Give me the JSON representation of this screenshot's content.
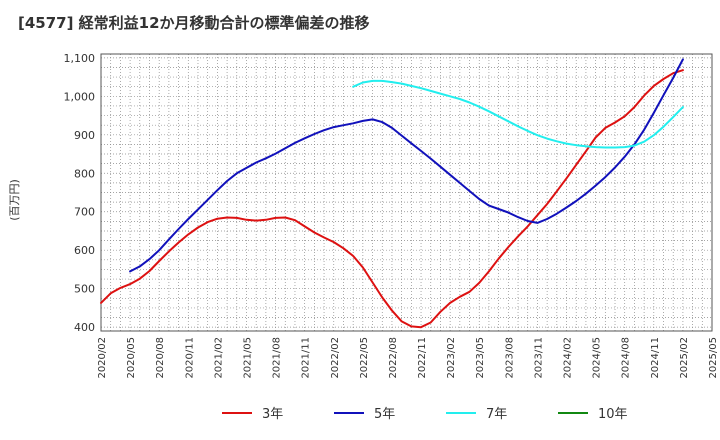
{
  "chart_data": {
    "type": "line",
    "title": "[4577]  経常利益12か月移動合計の標準偏差の推移",
    "ylabel": "(百万円)",
    "xlabel": "",
    "ylim": [
      390,
      1110
    ],
    "y_ticks": [
      "400",
      "500",
      "600",
      "700",
      "800",
      "900",
      "1,000",
      "1,100"
    ],
    "y_tick_values": [
      400,
      500,
      600,
      700,
      800,
      900,
      1000,
      1100
    ],
    "x_tick_labels": [
      "2020/02",
      "2020/05",
      "2020/08",
      "2020/11",
      "2021/02",
      "2021/05",
      "2021/08",
      "2021/11",
      "2022/02",
      "2022/05",
      "2022/08",
      "2022/11",
      "2023/02",
      "2023/05",
      "2023/08",
      "2023/11",
      "2024/02",
      "2024/05",
      "2024/08",
      "2024/11",
      "2025/02",
      "2025/05"
    ],
    "x_start": "2020/02",
    "x_end": "2025/05",
    "grid": true,
    "legend_position": "bottom",
    "series": [
      {
        "name": "3年",
        "color": "#dd1111",
        "x": [
          "2020/02",
          "2020/03",
          "2020/04",
          "2020/05",
          "2020/06",
          "2020/07",
          "2020/08",
          "2020/09",
          "2020/10",
          "2020/11",
          "2020/12",
          "2021/01",
          "2021/02",
          "2021/03",
          "2021/04",
          "2021/05",
          "2021/06",
          "2021/07",
          "2021/08",
          "2021/09",
          "2021/10",
          "2021/11",
          "2021/12",
          "2022/01",
          "2022/02",
          "2022/03",
          "2022/04",
          "2022/05",
          "2022/06",
          "2022/07",
          "2022/08",
          "2022/09",
          "2022/10",
          "2022/11",
          "2022/12",
          "2023/01",
          "2023/02",
          "2023/03",
          "2023/04",
          "2023/05",
          "2023/06",
          "2023/07",
          "2023/08",
          "2023/09",
          "2023/10",
          "2023/11",
          "2023/12",
          "2024/01",
          "2024/02",
          "2024/03",
          "2024/04",
          "2024/05",
          "2024/06",
          "2024/07",
          "2024/08",
          "2024/09",
          "2024/10",
          "2024/11",
          "2024/12",
          "2025/01",
          "2025/02"
        ],
        "values": [
          463,
          488,
          502,
          512,
          526,
          546,
          572,
          597,
          620,
          641,
          659,
          673,
          682,
          685,
          684,
          679,
          677,
          679,
          684,
          685,
          678,
          662,
          646,
          633,
          621,
          605,
          585,
          555,
          516,
          477,
          443,
          415,
          402,
          400,
          412,
          440,
          463,
          479,
          492,
          515,
          545,
          578,
          608,
          636,
          662,
          691,
          720,
          753,
          787,
          822,
          857,
          893,
          918,
          932,
          948,
          972,
          1002,
          1027,
          1045,
          1060,
          1068
        ]
      },
      {
        "name": "5年",
        "color": "#1111bb",
        "x": [
          "2020/05",
          "2020/06",
          "2020/07",
          "2020/08",
          "2020/09",
          "2020/10",
          "2020/11",
          "2020/12",
          "2021/01",
          "2021/02",
          "2021/03",
          "2021/04",
          "2021/05",
          "2021/06",
          "2021/07",
          "2021/08",
          "2021/09",
          "2021/10",
          "2021/11",
          "2021/12",
          "2022/01",
          "2022/02",
          "2022/03",
          "2022/04",
          "2022/05",
          "2022/06",
          "2022/07",
          "2022/08",
          "2022/09",
          "2022/10",
          "2022/11",
          "2022/12",
          "2023/01",
          "2023/02",
          "2023/03",
          "2023/04",
          "2023/05",
          "2023/06",
          "2023/07",
          "2023/08",
          "2023/09",
          "2023/10",
          "2023/11",
          "2023/12",
          "2024/01",
          "2024/02",
          "2024/03",
          "2024/04",
          "2024/05",
          "2024/06",
          "2024/07",
          "2024/08",
          "2024/09",
          "2024/10",
          "2024/11",
          "2024/12",
          "2025/01",
          "2025/02"
        ],
        "values": [
          545,
          558,
          577,
          600,
          628,
          655,
          681,
          706,
          731,
          756,
          780,
          800,
          814,
          828,
          839,
          851,
          865,
          879,
          891,
          902,
          912,
          920,
          925,
          930,
          936,
          940,
          933,
          918,
          898,
          878,
          858,
          838,
          817,
          796,
          775,
          754,
          733,
          716,
          707,
          698,
          686,
          676,
          671,
          681,
          695,
          711,
          728,
          747,
          768,
          790,
          815,
          843,
          875,
          913,
          957,
          1003,
          1048,
          1096
        ]
      },
      {
        "name": "7年",
        "color": "#22eeee",
        "x": [
          "2022/04",
          "2022/05",
          "2022/06",
          "2022/07",
          "2022/08",
          "2022/09",
          "2022/10",
          "2022/11",
          "2022/12",
          "2023/01",
          "2023/02",
          "2023/03",
          "2023/04",
          "2023/05",
          "2023/06",
          "2023/07",
          "2023/08",
          "2023/09",
          "2023/10",
          "2023/11",
          "2023/12",
          "2024/01",
          "2024/02",
          "2024/03",
          "2024/04",
          "2024/05",
          "2024/06",
          "2024/07",
          "2024/08",
          "2024/09",
          "2024/10",
          "2024/11",
          "2024/12",
          "2025/01",
          "2025/02"
        ],
        "values": [
          1025,
          1036,
          1040,
          1040,
          1037,
          1033,
          1027,
          1021,
          1014,
          1007,
          1000,
          993,
          984,
          973,
          961,
          948,
          935,
          922,
          910,
          899,
          890,
          883,
          877,
          873,
          870,
          868,
          867,
          867,
          868,
          872,
          882,
          899,
          921,
          946,
          972
        ]
      },
      {
        "name": "10年",
        "color": "#118811",
        "x": [],
        "values": []
      }
    ]
  }
}
